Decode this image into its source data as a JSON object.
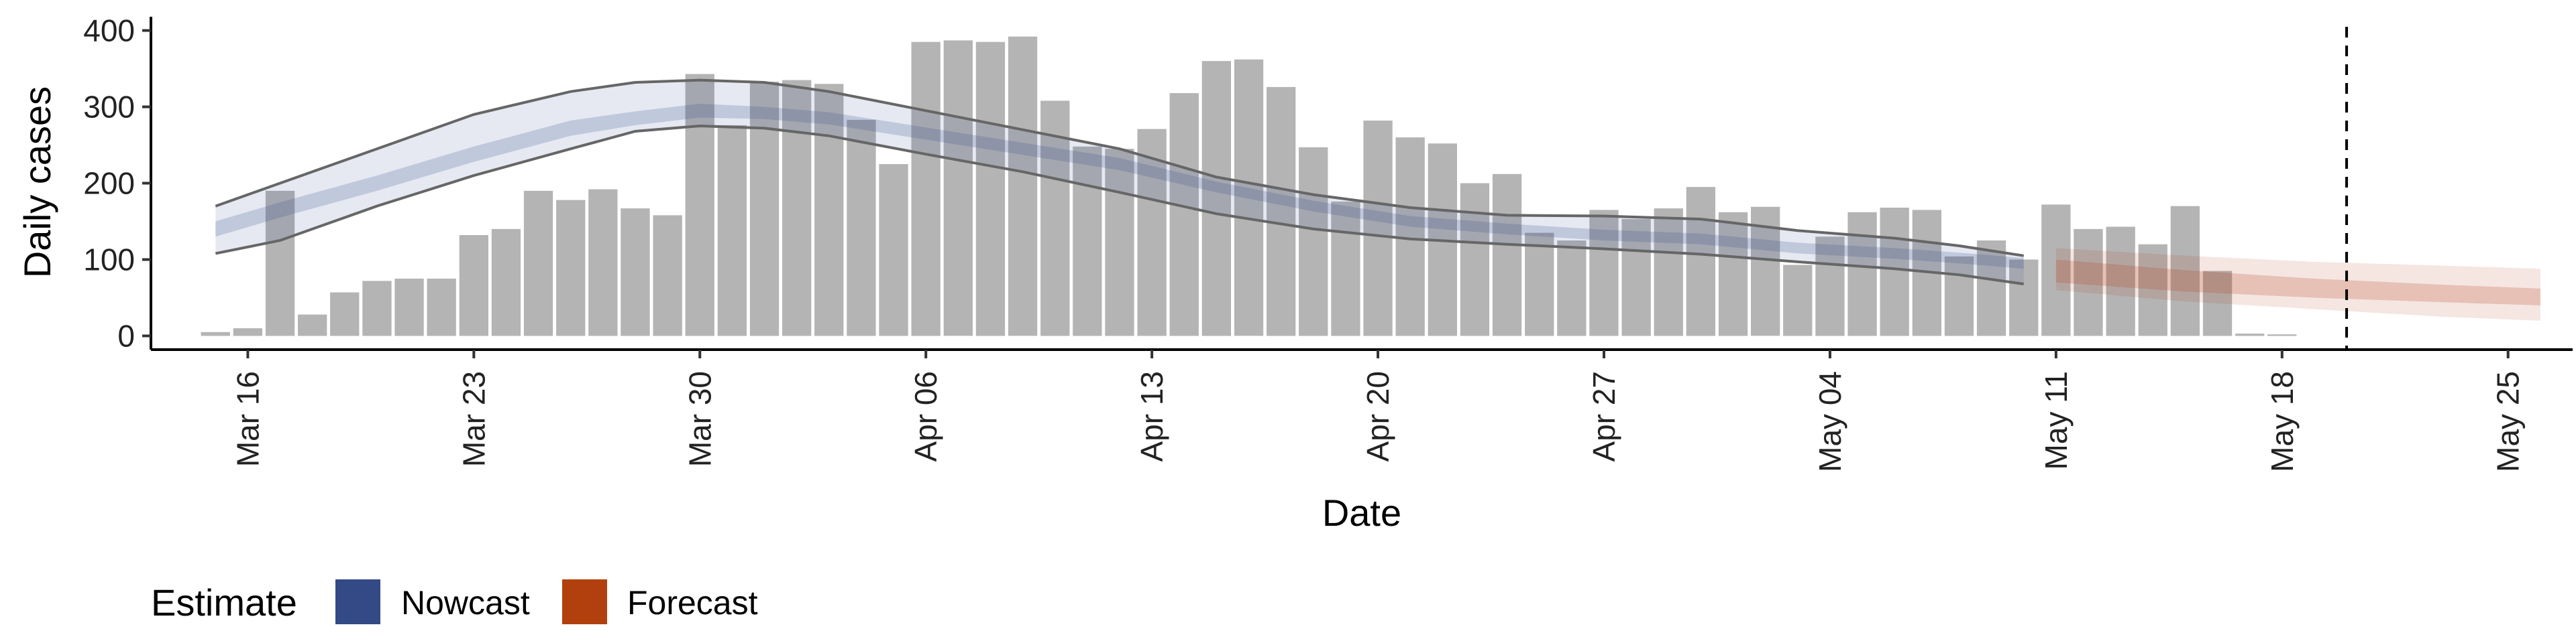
{
  "chart_data": {
    "type": "bar",
    "title": "",
    "xlabel": "Date",
    "ylabel": "Daily cases",
    "x_range": [
      "2020-03-13",
      "2020-05-27"
    ],
    "ylim": [
      -18,
      418
    ],
    "y_ticks": [
      0,
      100,
      200,
      300,
      400
    ],
    "x_ticks": [
      {
        "date": "2020-03-16",
        "label": "Mar 16"
      },
      {
        "date": "2020-03-23",
        "label": "Mar 23"
      },
      {
        "date": "2020-03-30",
        "label": "Mar 30"
      },
      {
        "date": "2020-04-06",
        "label": "Apr 06"
      },
      {
        "date": "2020-04-13",
        "label": "Apr 13"
      },
      {
        "date": "2020-04-20",
        "label": "Apr 20"
      },
      {
        "date": "2020-04-27",
        "label": "Apr 27"
      },
      {
        "date": "2020-05-04",
        "label": "May 04"
      },
      {
        "date": "2020-05-11",
        "label": "May 11"
      },
      {
        "date": "2020-05-18",
        "label": "May 18"
      },
      {
        "date": "2020-05-25",
        "label": "May 25"
      }
    ],
    "grid": false,
    "bars": {
      "start_date": "2020-03-15",
      "values": [
        5,
        10,
        190,
        28,
        57,
        72,
        75,
        75,
        132,
        140,
        190,
        178,
        192,
        167,
        158,
        343,
        276,
        333,
        335,
        330,
        283,
        225,
        385,
        387,
        385,
        392,
        308,
        248,
        245,
        271,
        318,
        360,
        362,
        326,
        247,
        176,
        282,
        260,
        252,
        200,
        212,
        135,
        125,
        165,
        153,
        167,
        195,
        162,
        169,
        93,
        130,
        162,
        168,
        165,
        104,
        125,
        100,
        172,
        140,
        143,
        120,
        170,
        85,
        3,
        2
      ]
    },
    "series": [
      {
        "name": "Nowcast",
        "color": "#3c5491",
        "dates": [
          "2020-03-15",
          "2020-03-17",
          "2020-03-20",
          "2020-03-23",
          "2020-03-26",
          "2020-03-28",
          "2020-03-30",
          "2020-04-01",
          "2020-04-03",
          "2020-04-06",
          "2020-04-09",
          "2020-04-12",
          "2020-04-15",
          "2020-04-18",
          "2020-04-21",
          "2020-04-24",
          "2020-04-27",
          "2020-04-30",
          "2020-05-03",
          "2020-05-06",
          "2020-05-08",
          "2020-05-10"
        ],
        "median": [
          140,
          165,
          200,
          238,
          272,
          285,
          295,
          292,
          285,
          265,
          245,
          225,
          195,
          170,
          150,
          140,
          132,
          127,
          115,
          108,
          102,
          95
        ],
        "inner_lower": [
          130,
          155,
          190,
          228,
          262,
          276,
          286,
          284,
          277,
          257,
          237,
          217,
          188,
          163,
          143,
          133,
          125,
          120,
          108,
          101,
          95,
          88
        ],
        "inner_upper": [
          150,
          175,
          210,
          248,
          282,
          294,
          304,
          300,
          293,
          273,
          253,
          233,
          202,
          177,
          157,
          147,
          139,
          134,
          122,
          115,
          109,
          102
        ],
        "lower_90": [
          108,
          125,
          170,
          210,
          245,
          268,
          275,
          272,
          262,
          238,
          215,
          188,
          160,
          140,
          127,
          120,
          114,
          107,
          97,
          88,
          80,
          68
        ],
        "upper_90": [
          170,
          200,
          245,
          290,
          320,
          332,
          335,
          332,
          320,
          295,
          270,
          245,
          208,
          185,
          168,
          158,
          157,
          153,
          138,
          128,
          118,
          105
        ]
      },
      {
        "name": "Forecast",
        "color": "#b5401c",
        "dates": [
          "2020-05-11",
          "2020-05-15",
          "2020-05-19",
          "2020-05-23",
          "2020-05-26"
        ],
        "median": [
          85,
          72,
          62,
          55,
          50
        ],
        "inner_lower": [
          70,
          58,
          50,
          44,
          40
        ],
        "inner_upper": [
          100,
          86,
          75,
          67,
          62
        ],
        "lower_90": [
          60,
          45,
          35,
          25,
          20
        ],
        "upper_90": [
          115,
          105,
          97,
          92,
          88
        ]
      }
    ],
    "vline_date": "2020-05-20",
    "legend": {
      "title": "Estimate",
      "position": "bottom-left",
      "items": [
        {
          "label": "Nowcast",
          "color": "#334a86"
        },
        {
          "label": "Forecast",
          "color": "#b2400e"
        }
      ]
    }
  }
}
